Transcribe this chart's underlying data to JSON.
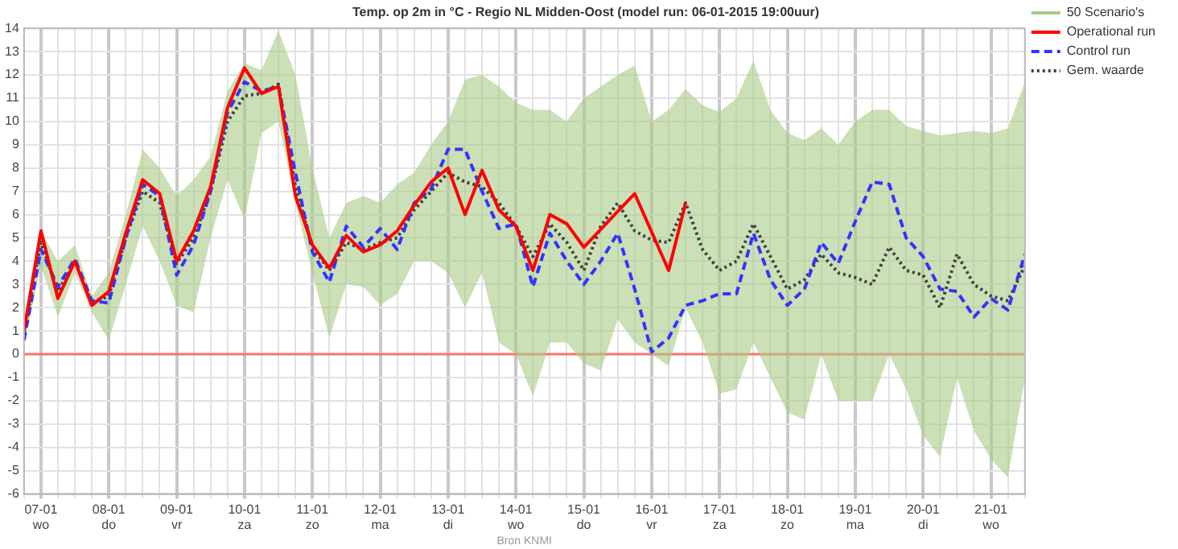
{
  "chart_data": {
    "type": "line",
    "title": "Temp. op 2m in °C - Regio NL Midden-Oost (model run: 06-01-2015 19:00uur)",
    "annotations": [
      "Bron KNMI"
    ],
    "x": [
      "2015-01-06T18:00",
      "2015-01-07T00:00",
      "2015-01-07T06:00",
      "2015-01-07T12:00",
      "2015-01-07T18:00",
      "2015-01-08T00:00",
      "2015-01-08T06:00",
      "2015-01-08T12:00",
      "2015-01-08T18:00",
      "2015-01-09T00:00",
      "2015-01-09T06:00",
      "2015-01-09T12:00",
      "2015-01-09T18:00",
      "2015-01-10T00:00",
      "2015-01-10T06:00",
      "2015-01-10T12:00",
      "2015-01-10T18:00",
      "2015-01-11T00:00",
      "2015-01-11T06:00",
      "2015-01-11T12:00",
      "2015-01-11T18:00",
      "2015-01-12T00:00",
      "2015-01-12T06:00",
      "2015-01-12T12:00",
      "2015-01-12T18:00",
      "2015-01-13T00:00",
      "2015-01-13T06:00",
      "2015-01-13T12:00",
      "2015-01-13T18:00",
      "2015-01-14T00:00",
      "2015-01-14T06:00",
      "2015-01-14T12:00",
      "2015-01-14T18:00",
      "2015-01-15T00:00",
      "2015-01-15T06:00",
      "2015-01-15T12:00",
      "2015-01-15T18:00",
      "2015-01-16T00:00",
      "2015-01-16T06:00",
      "2015-01-16T12:00",
      "2015-01-16T18:00",
      "2015-01-17T00:00",
      "2015-01-17T06:00",
      "2015-01-17T12:00",
      "2015-01-17T18:00",
      "2015-01-18T00:00",
      "2015-01-18T06:00",
      "2015-01-18T12:00",
      "2015-01-18T18:00",
      "2015-01-19T00:00",
      "2015-01-19T06:00",
      "2015-01-19T12:00",
      "2015-01-19T18:00",
      "2015-01-20T00:00",
      "2015-01-20T06:00",
      "2015-01-20T12:00",
      "2015-01-20T18:00",
      "2015-01-21T00:00",
      "2015-01-21T06:00",
      "2015-01-21T12:00"
    ],
    "series": [
      {
        "name": "50 Scenario's",
        "color": "#a9cb85",
        "values": [
          null,
          null,
          null,
          null,
          null,
          null,
          null,
          null,
          null,
          null,
          null,
          null,
          null,
          null,
          null,
          null,
          null,
          null,
          null,
          null,
          null,
          null,
          null,
          null,
          null,
          null,
          null,
          null,
          null,
          null,
          null,
          null,
          null,
          null,
          null,
          null,
          null,
          null,
          null,
          null,
          null,
          null,
          null,
          null,
          null,
          null,
          null,
          null,
          null,
          null,
          null,
          null,
          null,
          null,
          null,
          null,
          null,
          null,
          null,
          null
        ],
        "lower": [
          0.4,
          3.8,
          1.6,
          3.5,
          1.8,
          0.6,
          3.0,
          5.5,
          4.0,
          2.1,
          1.8,
          5.0,
          7.5,
          5.8,
          9.5,
          10.0,
          6.5,
          3.5,
          0.7,
          3.0,
          2.9,
          2.1,
          2.6,
          4.0,
          4.0,
          3.5,
          2.0,
          3.5,
          0.5,
          0.0,
          -1.8,
          0.5,
          0.5,
          -0.4,
          -0.7,
          1.5,
          0.5,
          0.0,
          -0.5,
          2.0,
          0.5,
          -1.7,
          -1.5,
          0.5,
          -1.0,
          -2.5,
          -2.8,
          0.0,
          -2.0,
          -2.0,
          -2.0,
          0.0,
          -1.5,
          -3.5,
          -4.4,
          -1.0,
          -3.3,
          -4.5,
          -5.3,
          -1.0
        ],
        "upper": [
          1.5,
          5.3,
          4.0,
          4.7,
          2.5,
          3.5,
          6.0,
          8.8,
          8.0,
          6.8,
          7.5,
          8.5,
          11.3,
          12.5,
          12.2,
          13.9,
          12.0,
          8.0,
          5.0,
          6.5,
          6.8,
          6.5,
          7.3,
          7.8,
          9.0,
          10.0,
          11.8,
          12.0,
          11.5,
          10.8,
          10.5,
          10.5,
          10.0,
          11.0,
          11.5,
          12.0,
          12.4,
          10.0,
          10.5,
          11.4,
          10.7,
          10.4,
          11.0,
          12.6,
          10.5,
          9.5,
          9.2,
          9.7,
          9.0,
          10.0,
          10.5,
          10.5,
          9.8,
          9.6,
          9.4,
          9.5,
          9.6,
          9.5,
          9.7,
          11.7
        ]
      },
      {
        "name": "Operational run",
        "color": "#ff0000",
        "line_style": "solid",
        "x": [
          "2015-01-06T18:00",
          "2015-01-07T00:00",
          "2015-01-07T06:00",
          "2015-01-07T12:00",
          "2015-01-07T18:00",
          "2015-01-08T00:00",
          "2015-01-08T06:00",
          "2015-01-08T12:00",
          "2015-01-08T18:00",
          "2015-01-09T00:00",
          "2015-01-09T06:00",
          "2015-01-09T12:00",
          "2015-01-09T18:00",
          "2015-01-10T00:00",
          "2015-01-10T06:00",
          "2015-01-10T12:00",
          "2015-01-10T18:00",
          "2015-01-11T00:00",
          "2015-01-11T06:00",
          "2015-01-11T12:00",
          "2015-01-11T18:00",
          "2015-01-12T00:00",
          "2015-01-12T06:00",
          "2015-01-12T12:00",
          "2015-01-12T18:00",
          "2015-01-13T00:00",
          "2015-01-13T06:00",
          "2015-01-13T12:00",
          "2015-01-13T18:00",
          "2015-01-14T00:00",
          "2015-01-14T06:00",
          "2015-01-14T12:00",
          "2015-01-14T18:00",
          "2015-01-15T00:00",
          "2015-01-15T18:00",
          "2015-01-16T06:00",
          "2015-01-16T12:00"
        ],
        "values": [
          1.0,
          5.3,
          2.4,
          4.0,
          2.1,
          2.7,
          5.2,
          7.5,
          6.9,
          4.0,
          5.3,
          7.2,
          10.6,
          12.3,
          11.2,
          11.5,
          6.8,
          4.7,
          3.7,
          5.1,
          4.4,
          4.7,
          5.3,
          6.4,
          7.4,
          8.0,
          6.0,
          7.9,
          6.2,
          5.5,
          3.6,
          6.0,
          5.6,
          4.6,
          6.9,
          3.6,
          6.5
        ]
      },
      {
        "name": "Control run",
        "color": "#3333ff",
        "line_style": "dashed",
        "values": [
          0.6,
          4.5,
          2.9,
          4.1,
          2.3,
          2.2,
          5.0,
          7.3,
          6.8,
          3.4,
          4.7,
          7.0,
          10.4,
          11.7,
          11.3,
          11.5,
          7.8,
          4.4,
          3.1,
          5.5,
          4.6,
          5.4,
          4.5,
          6.5,
          7.1,
          8.8,
          8.8,
          7.0,
          5.4,
          5.6,
          2.9,
          5.2,
          4.0,
          3.0,
          4.0,
          5.2,
          2.8,
          0.1,
          0.7,
          2.1,
          2.3,
          2.6,
          2.6,
          5.2,
          3.2,
          2.1,
          2.8,
          4.8,
          3.9,
          5.7,
          7.4,
          7.3,
          5.0,
          4.2,
          2.8,
          2.7,
          1.6,
          2.4,
          1.9,
          4.3
        ]
      },
      {
        "name": "Gem. waarde",
        "color": "#404040",
        "line_style": "dotted",
        "values": [
          0.9,
          4.8,
          2.7,
          4.0,
          2.2,
          2.5,
          5.0,
          7.0,
          6.5,
          3.9,
          5.0,
          7.0,
          10.0,
          11.1,
          11.2,
          11.6,
          7.2,
          4.6,
          3.6,
          4.8,
          4.5,
          4.8,
          5.0,
          6.2,
          7.0,
          7.8,
          7.4,
          7.2,
          6.5,
          5.5,
          4.2,
          5.6,
          4.8,
          3.6,
          5.5,
          6.5,
          5.3,
          4.9,
          4.8,
          6.5,
          4.5,
          3.6,
          4.0,
          5.6,
          4.2,
          2.8,
          3.2,
          4.3,
          3.5,
          3.3,
          3.0,
          4.6,
          3.6,
          3.4,
          2.0,
          4.3,
          3.0,
          2.5,
          2.3,
          3.8
        ]
      }
    ],
    "xlim": [
      "2015-01-06T18:00",
      "2015-01-21T12:00"
    ],
    "xticks": [
      {
        "value": "2015-01-06T18:00",
        "label": null
      },
      {
        "value": "2015-01-07T00:00",
        "label": "07-01\nwo"
      },
      {
        "value": "2015-01-07T06:00",
        "label": null
      },
      {
        "value": "2015-01-07T12:00",
        "label": null
      },
      {
        "value": "2015-01-07T18:00",
        "label": null
      },
      {
        "value": "2015-01-08T00:00",
        "label": "08-01\ndo"
      },
      {
        "value": "2015-01-08T06:00",
        "label": null
      },
      {
        "value": "2015-01-08T12:00",
        "label": null
      },
      {
        "value": "2015-01-08T18:00",
        "label": null
      },
      {
        "value": "2015-01-09T00:00",
        "label": "09-01\nvr"
      },
      {
        "value": "2015-01-09T06:00",
        "label": null
      },
      {
        "value": "2015-01-09T12:00",
        "label": null
      },
      {
        "value": "2015-01-09T18:00",
        "label": null
      },
      {
        "value": "2015-01-10T00:00",
        "label": "10-01\nza"
      },
      {
        "value": "2015-01-10T06:00",
        "label": null
      },
      {
        "value": "2015-01-10T12:00",
        "label": null
      },
      {
        "value": "2015-01-10T18:00",
        "label": null
      },
      {
        "value": "2015-01-11T00:00",
        "label": "11-01\nzo"
      },
      {
        "value": "2015-01-11T06:00",
        "label": null
      },
      {
        "value": "2015-01-11T12:00",
        "label": null
      },
      {
        "value": "2015-01-11T18:00",
        "label": null
      },
      {
        "value": "2015-01-12T00:00",
        "label": "12-01\nma"
      },
      {
        "value": "2015-01-12T06:00",
        "label": null
      },
      {
        "value": "2015-01-12T12:00",
        "label": null
      },
      {
        "value": "2015-01-12T18:00",
        "label": null
      },
      {
        "value": "2015-01-13T00:00",
        "label": "13-01\ndi"
      },
      {
        "value": "2015-01-13T06:00",
        "label": null
      },
      {
        "value": "2015-01-13T12:00",
        "label": null
      },
      {
        "value": "2015-01-13T18:00",
        "label": null
      },
      {
        "value": "2015-01-14T00:00",
        "label": "14-01\nwo"
      },
      {
        "value": "2015-01-14T06:00",
        "label": null
      },
      {
        "value": "2015-01-14T12:00",
        "label": null
      },
      {
        "value": "2015-01-14T18:00",
        "label": null
      },
      {
        "value": "2015-01-15T00:00",
        "label": "15-01\ndo"
      },
      {
        "value": "2015-01-15T06:00",
        "label": null
      },
      {
        "value": "2015-01-15T12:00",
        "label": null
      },
      {
        "value": "2015-01-15T18:00",
        "label": null
      },
      {
        "value": "2015-01-16T00:00",
        "label": "16-01\nvr"
      },
      {
        "value": "2015-01-16T06:00",
        "label": null
      },
      {
        "value": "2015-01-16T12:00",
        "label": null
      },
      {
        "value": "2015-01-16T18:00",
        "label": null
      },
      {
        "value": "2015-01-17T00:00",
        "label": "17-01\nza"
      },
      {
        "value": "2015-01-17T06:00",
        "label": null
      },
      {
        "value": "2015-01-17T12:00",
        "label": null
      },
      {
        "value": "2015-01-17T18:00",
        "label": null
      },
      {
        "value": "2015-01-18T00:00",
        "label": "18-01\nzo"
      },
      {
        "value": "2015-01-18T06:00",
        "label": null
      },
      {
        "value": "2015-01-18T12:00",
        "label": null
      },
      {
        "value": "2015-01-18T18:00",
        "label": null
      },
      {
        "value": "2015-01-19T00:00",
        "label": "19-01\nma"
      },
      {
        "value": "2015-01-19T06:00",
        "label": null
      },
      {
        "value": "2015-01-19T12:00",
        "label": null
      },
      {
        "value": "2015-01-19T18:00",
        "label": null
      },
      {
        "value": "2015-01-20T00:00",
        "label": "20-01\ndi"
      },
      {
        "value": "2015-01-20T06:00",
        "label": null
      },
      {
        "value": "2015-01-20T12:00",
        "label": null
      },
      {
        "value": "2015-01-20T18:00",
        "label": null
      },
      {
        "value": "2015-01-21T00:00",
        "label": "21-01\nwo"
      },
      {
        "value": "2015-01-21T06:00",
        "label": null
      },
      {
        "value": "2015-01-21T12:00",
        "label": null
      }
    ],
    "ylim": [
      -6,
      14
    ],
    "yticks": [
      -6,
      -5,
      -4,
      -3,
      -2,
      -1,
      0,
      1,
      2,
      3,
      4,
      5,
      6,
      7,
      8,
      9,
      10,
      11,
      12,
      13,
      14
    ],
    "ref_lines": [
      {
        "axis": "y",
        "value": 0,
        "color": "#ff7070"
      }
    ],
    "grid": true,
    "legend": "right"
  }
}
